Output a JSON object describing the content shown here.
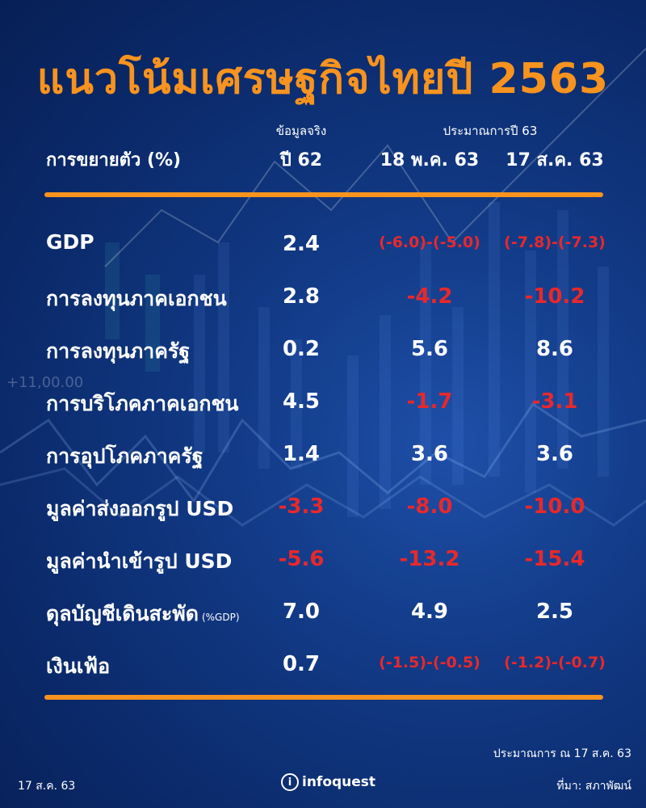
{
  "title": "แนวโน้มเศรษฐกิจไทยปี 2563",
  "header": {
    "label": "การขยายตัว (%)",
    "col1_small": "ข้อมูลจริง",
    "col1_big": "ปี 62",
    "forecast_small": "ประมาณการปี 63",
    "col2_big": "18 พ.ค. 63",
    "col3_big": "17 ส.ค. 63"
  },
  "rows": [
    {
      "label": "GDP",
      "sub": "",
      "v1": "2.4",
      "v2": "(-6.0)-(-5.0)",
      "v3": "(-7.8)-(-7.3)"
    },
    {
      "label": "การลงทุนภาคเอกชน",
      "sub": "",
      "v1": "2.8",
      "v2": "-4.2",
      "v3": "-10.2"
    },
    {
      "label": "การลงทุนภาครัฐ",
      "sub": "",
      "v1": "0.2",
      "v2": "5.6",
      "v3": "8.6"
    },
    {
      "label": "การบริโภคภาคเอกชน",
      "sub": "",
      "v1": "4.5",
      "v2": "-1.7",
      "v3": "-3.1"
    },
    {
      "label": "การอุปโภคภาครัฐ",
      "sub": "",
      "v1": "1.4",
      "v2": "3.6",
      "v3": "3.6"
    },
    {
      "label": "มูลค่าส่งออกรูป USD",
      "sub": "",
      "v1": "-3.3",
      "v2": "-8.0",
      "v3": "-10.0"
    },
    {
      "label": "มูลค่านำเข้ารูป USD",
      "sub": "",
      "v1": "-5.6",
      "v2": "-13.2",
      "v3": "-15.4"
    },
    {
      "label": "ดุลบัญชีเดินสะพัด",
      "sub": "(%GDP)",
      "v1": "7.0",
      "v2": "4.9",
      "v3": "2.5"
    },
    {
      "label": "เงินเฟ้อ",
      "sub": "",
      "v1": "0.7",
      "v2": "(-1.5)-(-0.5)",
      "v3": "(-1.2)-(-0.7)"
    }
  ],
  "footer": {
    "note": "ประมาณการ ณ 17 ส.ค. 63",
    "date": "17 ส.ค. 63",
    "logo_letter": "i",
    "logo_text": "infoquest",
    "source": "ที่มา: สภาพัฒน์"
  },
  "background_watermark": "+11,00.00",
  "colors": {
    "accent": "#f7931e",
    "negative": "#e8282b",
    "positive": "#ffffff",
    "background": "#0b2a6b"
  }
}
